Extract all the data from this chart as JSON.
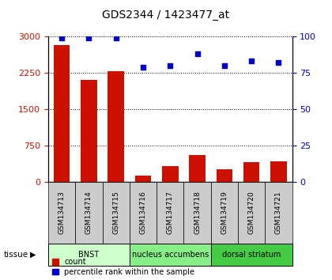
{
  "title": "GDS2344 / 1423477_at",
  "samples": [
    "GSM134713",
    "GSM134714",
    "GSM134715",
    "GSM134716",
    "GSM134717",
    "GSM134718",
    "GSM134719",
    "GSM134720",
    "GSM134721"
  ],
  "counts": [
    2820,
    2100,
    2280,
    130,
    330,
    560,
    270,
    410,
    420
  ],
  "percentiles": [
    99,
    99,
    99,
    79,
    80,
    88,
    80,
    83,
    82
  ],
  "ylim_left": [
    0,
    3000
  ],
  "ylim_right": [
    0,
    100
  ],
  "yticks_left": [
    0,
    750,
    1500,
    2250,
    3000
  ],
  "yticks_right": [
    0,
    25,
    50,
    75,
    100
  ],
  "bar_color": "#cc1100",
  "dot_color": "#0000cc",
  "tissue_groups": [
    {
      "label": "BNST",
      "start": 0,
      "end": 3,
      "color": "#ccffcc"
    },
    {
      "label": "nucleus accumbens",
      "start": 3,
      "end": 6,
      "color": "#88ee88"
    },
    {
      "label": "dorsal striatum",
      "start": 6,
      "end": 9,
      "color": "#44cc44"
    }
  ],
  "tissue_label": "tissue",
  "legend_count_label": "count",
  "legend_pct_label": "percentile rank within the sample",
  "background_color": "#ffffff",
  "sample_box_color": "#cccccc",
  "sample_box_edge": "#888888"
}
